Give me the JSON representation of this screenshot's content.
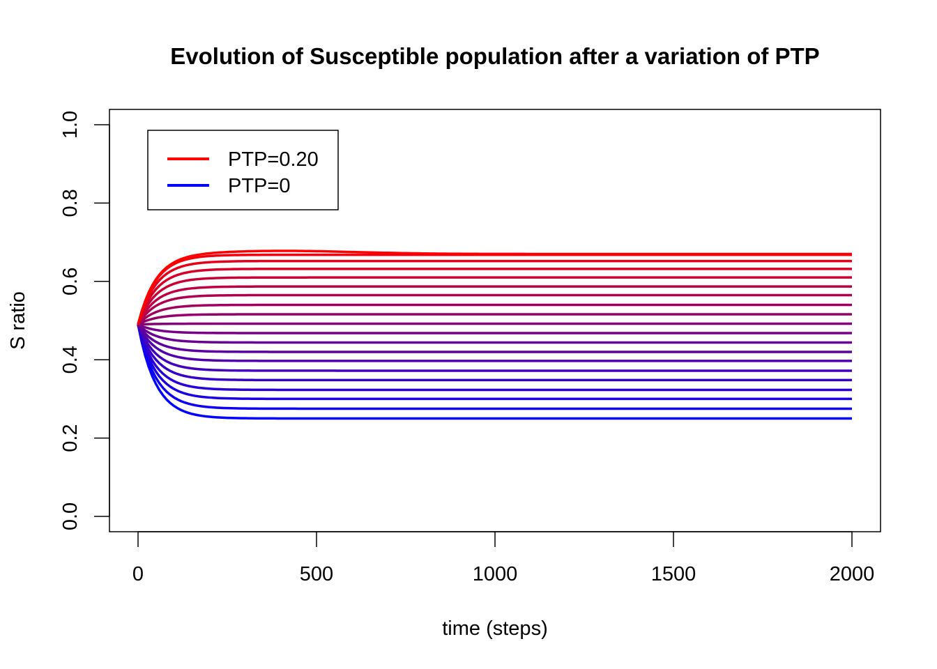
{
  "chart_data": {
    "type": "line",
    "title": "Evolution of Susceptible population after a variation of  PTP",
    "xlabel": "time (steps)",
    "ylabel": "S ratio",
    "xlim": [
      0,
      2000
    ],
    "ylim": [
      0,
      1
    ],
    "x_ticks": [
      "0",
      "500",
      "1000",
      "1500",
      "2000"
    ],
    "y_ticks": [
      "0.0",
      "0.2",
      "0.4",
      "0.6",
      "0.8",
      "1.0"
    ],
    "grid": false,
    "legend_position": "top-left",
    "legend": [
      {
        "label": "PTP=0.20",
        "color": "#ff0000"
      },
      {
        "label": "PTP=0",
        "color": "#0000ff"
      }
    ],
    "series_model": "exponential approach from initial value to plateau",
    "initial_value": 0.49,
    "x_start": 0,
    "x_end": 2000,
    "plateaus": [
      0.25,
      0.275,
      0.3,
      0.323,
      0.348,
      0.372,
      0.397,
      0.42,
      0.444,
      0.468,
      0.492,
      0.516,
      0.54,
      0.565,
      0.587,
      0.61,
      0.632,
      0.652,
      0.668,
      0.67
    ],
    "color_start": "#0000ff",
    "color_end": "#ff0000"
  }
}
